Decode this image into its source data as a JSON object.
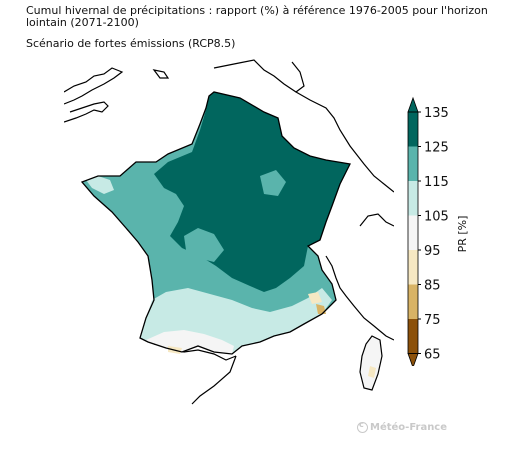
{
  "title": "Cumul hivernal de précipitations : rapport (%) à référence 1976-2005 pour l'horizon lointain (2071-2100)",
  "subtitle": "Scénario de fortes émissions (RCP8.5)",
  "legend": {
    "unit_label": "PR [%]",
    "ticks": [
      "65",
      "75",
      "85",
      "95",
      "105",
      "115",
      "125",
      "135"
    ],
    "colors": [
      "#8c510a",
      "#d8b365",
      "#f6e8c3",
      "#f5f5f5",
      "#c7eae5",
      "#5ab4ac",
      "#01665e"
    ]
  },
  "credit": "Météo-France",
  "colors": {
    "ocean": "#ffffff",
    "coast": "#000000",
    "dark_teal": "#01665e",
    "mid_teal": "#5ab4ac",
    "light_teal": "#c7eae5",
    "white": "#f5f5f5",
    "light_tan": "#f6e8c3",
    "tan": "#d8b365"
  }
}
